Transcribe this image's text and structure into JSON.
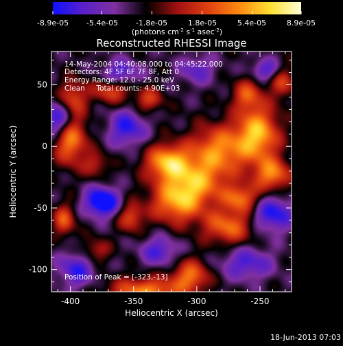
{
  "colorbar": {
    "tick_labels": [
      "-8.9e-05",
      "-5.4e-05",
      "-1.8e-05",
      "1.8e-05",
      "5.4e-05",
      "8.9e-05"
    ],
    "min": -8.9e-05,
    "max": 8.9e-05,
    "units_parts": [
      "(photons cm",
      "-2",
      " s",
      "-1",
      " asec",
      "-2",
      ")"
    ],
    "colormap": [
      "#1010ff",
      "#5a20c8",
      "#8030a0",
      "#000000",
      "#a01010",
      "#e04010",
      "#ff8a10",
      "#ffe030",
      "#ffffd8"
    ]
  },
  "chart_data": {
    "type": "heatmap",
    "title": "Reconstructed RHESSI Image",
    "xlabel": "Heliocentric X (arcsec)",
    "ylabel": "Heliocentric Y (arcsec)",
    "xlim": [
      -415,
      -225
    ],
    "ylim": [
      -118,
      77
    ],
    "xticks": [
      -400,
      -350,
      -300,
      -250
    ],
    "yticks": [
      50,
      0,
      -50,
      -100
    ],
    "annotations": [
      "14-May-2004 04:40:08.000 to 04:45:22.000",
      "Detectors: 4F 5F 6F 7F 8F, Att 0",
      "Energy Range: 12.0 - 25.0 keV",
      "Clean     Total counts: 4.90E+03"
    ],
    "peak_label": "Position of Peak = [-323,-13]",
    "peak": [
      -323,
      -13
    ],
    "sources": [
      {
        "x": -323,
        "y": -13,
        "w": 12,
        "h": 10,
        "amp": 0.95
      },
      {
        "x": -283,
        "y": -3,
        "w": 16,
        "h": 14,
        "amp": 0.78
      },
      {
        "x": -252,
        "y": 10,
        "w": 12,
        "h": 16,
        "amp": 0.95
      },
      {
        "x": -240,
        "y": -23,
        "w": 10,
        "h": 9,
        "amp": 0.75
      },
      {
        "x": -315,
        "y": -45,
        "w": 15,
        "h": 12,
        "amp": 0.85
      },
      {
        "x": -300,
        "y": -28,
        "w": 16,
        "h": 12,
        "amp": 0.7
      },
      {
        "x": -265,
        "y": -42,
        "w": 10,
        "h": 8,
        "amp": 0.7
      },
      {
        "x": -275,
        "y": -65,
        "w": 14,
        "h": 10,
        "amp": 0.7
      },
      {
        "x": -400,
        "y": 5,
        "w": 9,
        "h": 14,
        "amp": 0.8
      },
      {
        "x": -398,
        "y": 40,
        "w": 8,
        "h": 10,
        "amp": 0.55
      },
      {
        "x": -368,
        "y": 45,
        "w": 10,
        "h": 7,
        "amp": 0.55
      },
      {
        "x": -338,
        "y": 38,
        "w": 8,
        "h": 7,
        "amp": 0.5
      },
      {
        "x": -260,
        "y": 42,
        "w": 8,
        "h": 9,
        "amp": 0.55
      },
      {
        "x": -232,
        "y": 52,
        "w": 7,
        "h": 9,
        "amp": 0.5
      },
      {
        "x": -352,
        "y": -58,
        "w": 7,
        "h": 8,
        "amp": 0.55
      },
      {
        "x": -405,
        "y": -60,
        "w": 6,
        "h": 9,
        "amp": 0.6
      },
      {
        "x": -340,
        "y": -118,
        "w": 20,
        "h": 8,
        "amp": 0.8
      },
      {
        "x": -305,
        "y": -105,
        "w": 10,
        "h": 9,
        "amp": 0.7
      },
      {
        "x": -380,
        "y": -85,
        "w": 8,
        "h": 7,
        "amp": 0.4
      },
      {
        "x": -380,
        "y": -15,
        "w": 7,
        "h": 7,
        "amp": 0.4
      },
      {
        "x": -375,
        "y": -45,
        "w": 9,
        "h": 8,
        "amp": -0.95
      },
      {
        "x": -410,
        "y": 22,
        "w": 8,
        "h": 10,
        "amp": -0.7
      },
      {
        "x": -360,
        "y": 60,
        "w": 10,
        "h": 7,
        "amp": -0.5
      },
      {
        "x": -245,
        "y": 62,
        "w": 8,
        "h": 6,
        "amp": -0.5
      },
      {
        "x": -355,
        "y": 15,
        "w": 10,
        "h": 10,
        "amp": -0.6
      },
      {
        "x": -240,
        "y": -55,
        "w": 12,
        "h": 10,
        "amp": -0.65
      },
      {
        "x": -300,
        "y": 62,
        "w": 10,
        "h": 8,
        "amp": -0.4
      },
      {
        "x": -260,
        "y": -95,
        "w": 14,
        "h": 9,
        "amp": -0.5
      },
      {
        "x": -395,
        "y": -100,
        "w": 10,
        "h": 10,
        "amp": -0.55
      },
      {
        "x": -330,
        "y": -85,
        "w": 10,
        "h": 8,
        "amp": -0.5
      }
    ]
  },
  "footer": {
    "timestamp": "18-Jun-2013 07:03"
  }
}
